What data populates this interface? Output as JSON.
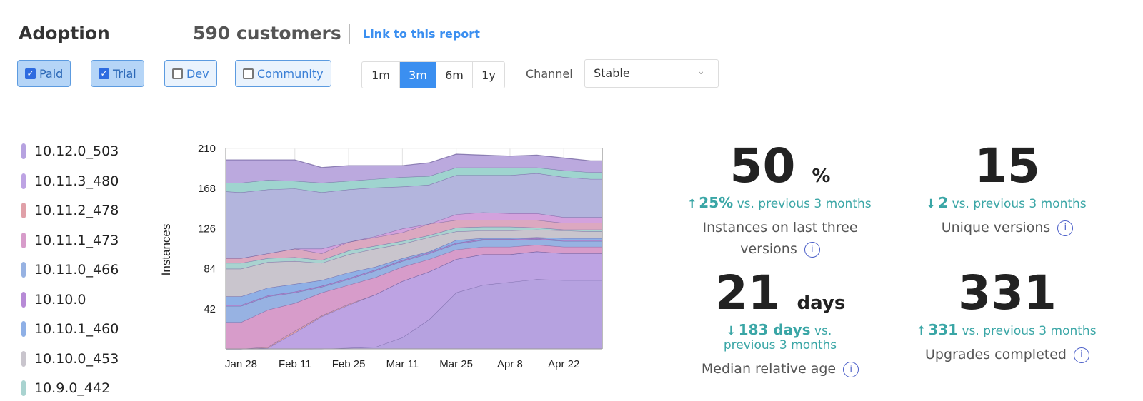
{
  "header": {
    "title": "Adoption",
    "customers": "590 customers",
    "link": "Link to this report"
  },
  "filters": [
    {
      "label": "Paid",
      "checked": true
    },
    {
      "label": "Trial",
      "checked": true
    },
    {
      "label": "Dev",
      "checked": false
    },
    {
      "label": "Community",
      "checked": false
    }
  ],
  "ranges": {
    "options": [
      "1m",
      "3m",
      "6m",
      "1y"
    ],
    "selected": "3m"
  },
  "channel": {
    "label": "Channel",
    "value": "Stable"
  },
  "stats": [
    {
      "value": "50",
      "unit": "%",
      "dir": "up",
      "delta": "25%",
      "cmp": "vs. previous 3 months",
      "label": "Instances on last three versions"
    },
    {
      "value": "15",
      "unit": "",
      "dir": "down",
      "delta": "2",
      "cmp": "vs. previous 3 months",
      "label": "Unique versions"
    },
    {
      "value": "21",
      "unit": "days",
      "dir": "down",
      "delta": "183 days",
      "cmp": "vs. previous 3 months",
      "label": "Median relative age"
    },
    {
      "value": "331",
      "unit": "",
      "dir": "up",
      "delta": "331",
      "cmp": "vs. previous 3 months",
      "label": "Upgrades completed"
    }
  ],
  "chart_data": {
    "type": "area",
    "stacked": true,
    "ylabel": "Instances",
    "ylim": [
      0,
      210
    ],
    "yticks": [
      "42",
      "84",
      "126",
      "168",
      "210"
    ],
    "xticks": [
      "Jan 28",
      "Feb 11",
      "Feb 25",
      "Mar 11",
      "Mar 25",
      "Apr 8",
      "Apr 22"
    ],
    "x": [
      "Jan 24",
      "Jan 28",
      "Feb 4",
      "Feb 11",
      "Feb 18",
      "Feb 25",
      "Mar 4",
      "Mar 11",
      "Mar 18",
      "Mar 25",
      "Apr 1",
      "Apr 8",
      "Apr 15",
      "Apr 22",
      "Apr 29",
      "May 2"
    ],
    "grid": true,
    "legend": "left",
    "series": [
      {
        "name": "10.12.0_503",
        "color": "#b6a2e0",
        "values": [
          0,
          0,
          0,
          0,
          0,
          1,
          2,
          12,
          31,
          59,
          67,
          70,
          73,
          72,
          72,
          72
        ]
      },
      {
        "name": "10.11.3_480",
        "color": "#bda3e3",
        "values": [
          0,
          0,
          1,
          17,
          34,
          45,
          55,
          59,
          50,
          35,
          32,
          29,
          29,
          28,
          28,
          28
        ]
      },
      {
        "name": "10.11.2_478",
        "color": "#e0a0a8",
        "values": [
          0,
          0,
          1,
          2,
          1,
          1,
          0,
          0,
          0,
          0,
          0,
          0,
          0,
          0,
          0,
          0
        ]
      },
      {
        "name": "10.11.1_473",
        "color": "#d79cca",
        "values": [
          28,
          28,
          39,
          29,
          24,
          20,
          18,
          15,
          13,
          10,
          8,
          8,
          7,
          7,
          7,
          7
        ]
      },
      {
        "name": "10.11.0_466",
        "color": "#97b2e2",
        "values": [
          17,
          17,
          14,
          11,
          6,
          6,
          7,
          6,
          6,
          6,
          7,
          7,
          6,
          6,
          6,
          6
        ]
      },
      {
        "name": "10.10.0",
        "color": "#b78ad6",
        "values": [
          1,
          1,
          1,
          1,
          1,
          1,
          1,
          1,
          1,
          1,
          1,
          1,
          1,
          1,
          1,
          1
        ]
      },
      {
        "name": "10.10.1_460",
        "color": "#8fb0e6",
        "values": [
          9,
          9,
          8,
          8,
          6,
          6,
          3,
          2,
          1,
          3,
          1,
          1,
          1,
          2,
          2,
          2
        ]
      },
      {
        "name": "10.10.0_453",
        "color": "#c9c5cd",
        "values": [
          29,
          29,
          27,
          24,
          18,
          19,
          19,
          15,
          15,
          9,
          8,
          8,
          8,
          8,
          7,
          7
        ]
      },
      {
        "name": "10.9.0_442",
        "color": "#a9d3d0",
        "values": [
          6,
          6,
          4,
          4,
          3,
          4,
          3,
          3,
          2,
          4,
          4,
          4,
          2,
          1,
          2,
          2
        ]
      },
      {
        "color": "#dca8c0",
        "values": [
          5,
          5,
          5,
          9,
          7,
          9,
          9,
          9,
          12,
          8,
          7,
          7,
          8,
          7,
          7,
          7
        ]
      },
      {
        "color": "#d3a2dd",
        "values": [
          0,
          0,
          0,
          0,
          5,
          0,
          1,
          4,
          0,
          6,
          8,
          7,
          7,
          6,
          6,
          6
        ]
      },
      {
        "color": "#b3b5dd",
        "values": [
          70,
          69,
          67,
          63,
          59,
          55,
          51,
          44,
          41,
          41,
          39,
          40,
          42,
          42,
          40,
          40
        ]
      },
      {
        "color": "#9fd4cf",
        "values": [
          9,
          10,
          10,
          8,
          10,
          9,
          9,
          10,
          9,
          8,
          8,
          8,
          6,
          7,
          7,
          7
        ]
      },
      {
        "color": "#bba9de",
        "values": [
          24,
          24,
          21,
          22,
          16,
          16,
          14,
          12,
          14,
          14,
          13,
          12,
          13,
          13,
          12,
          12
        ]
      }
    ]
  }
}
